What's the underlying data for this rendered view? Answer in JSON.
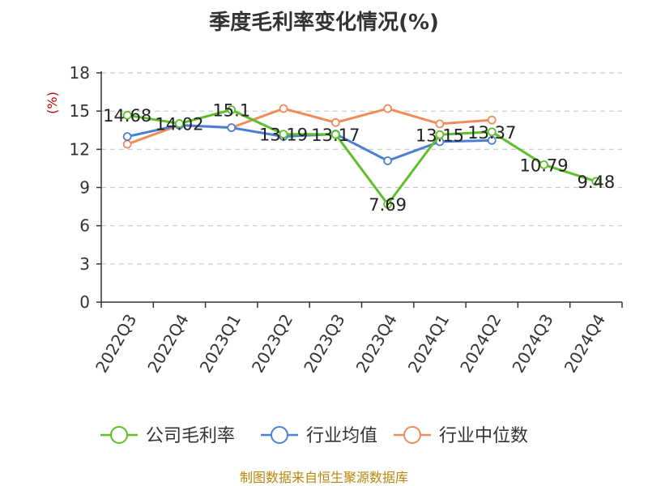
{
  "chart_data": {
    "type": "line",
    "title": "季度毛利率变化情况(%)",
    "ylabel": "(%)",
    "xlabel": "",
    "categories": [
      "2022Q3",
      "2022Q4",
      "2023Q1",
      "2023Q2",
      "2023Q3",
      "2023Q4",
      "2024Q1",
      "2024Q2",
      "2024Q3",
      "2024Q4"
    ],
    "ylim": [
      0,
      18
    ],
    "yticks": [
      0,
      3,
      6,
      9,
      12,
      15,
      18
    ],
    "grid": "horizontal-dashed",
    "legend_position": "bottom",
    "series": [
      {
        "name": "公司毛利率",
        "color": "#5fbf2a",
        "values": [
          14.68,
          14.02,
          15.1,
          13.19,
          13.17,
          7.69,
          13.15,
          13.37,
          10.79,
          9.48
        ],
        "labels": [
          "14.68",
          "14.02",
          "15.1",
          "13.19",
          "13.17",
          "7.69",
          "13.15",
          "13.37",
          "10.79",
          "9.48"
        ]
      },
      {
        "name": "行业均值",
        "color": "#4a7fd4",
        "values": [
          13.0,
          13.9,
          13.7,
          13.0,
          13.2,
          11.1,
          12.6,
          12.7,
          null,
          null
        ]
      },
      {
        "name": "行业中位数",
        "color": "#f08c5a",
        "values": [
          12.4,
          13.9,
          13.7,
          15.2,
          14.1,
          15.2,
          14.0,
          14.3,
          null,
          null
        ]
      }
    ]
  },
  "source_note": "制图数据来自恒生聚源数据库"
}
